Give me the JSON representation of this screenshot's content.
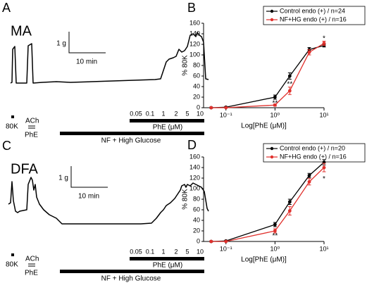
{
  "trace_panels": [
    {
      "letter": "A",
      "label": "MA",
      "scale_force": "1 g",
      "scale_time": "10 min",
      "stimuli": [
        "80K",
        "ACh",
        "PhE"
      ],
      "concentrations": [
        "0.05",
        "0.1",
        "1",
        "2",
        "5",
        "10"
      ],
      "phe_label": "PhE (μM)",
      "bar_label": "NF + High Glucose"
    },
    {
      "letter": "C",
      "label": "DFA",
      "scale_force": "1 g",
      "scale_time": "10 min",
      "stimuli": [
        "80K",
        "ACh",
        "PhE"
      ],
      "concentrations": [
        "0.05",
        "0.1",
        "1",
        "2",
        "5",
        "10"
      ],
      "phe_label": "PhE (μM)",
      "bar_label": "NF + High Glucose"
    }
  ],
  "chart_data": [
    {
      "type": "line",
      "panel": "B",
      "ylabel": "% 80K",
      "xlabel": "Log[PhE (μM)]",
      "log_x": true,
      "x": [
        0.05,
        0.1,
        1,
        2,
        5,
        10
      ],
      "xlim": [
        0.035,
        10
      ],
      "xticks": [
        {
          "value": 0.1,
          "label": "10⁻¹"
        },
        {
          "value": 1,
          "label": "10⁰"
        },
        {
          "value": 10,
          "label": "10¹"
        }
      ],
      "ylim": [
        0,
        160
      ],
      "yticks": [
        0,
        20,
        40,
        60,
        80,
        100,
        120,
        140,
        160
      ],
      "series": [
        {
          "name": "Control  endo (+) / n=24",
          "color": "#000000",
          "values": [
            0,
            1,
            20,
            60,
            110,
            118
          ],
          "errors": [
            1,
            1,
            4,
            6,
            4,
            3
          ]
        },
        {
          "name": "NF+HG endo (+) / n=16",
          "color": "#e0302c",
          "values": [
            0,
            0,
            5,
            32,
            105,
            122
          ],
          "errors": [
            0,
            0,
            2,
            7,
            5,
            4
          ]
        }
      ],
      "annotations": [
        {
          "text": "**",
          "x": 1,
          "y": 8
        },
        {
          "text": "**",
          "x": 2,
          "y": 44
        },
        {
          "text": "*",
          "x": 10,
          "y": 131
        }
      ]
    },
    {
      "type": "line",
      "panel": "D",
      "ylabel": "% 80K",
      "xlabel": "Log[PhE (μM)]",
      "log_x": true,
      "x": [
        0.05,
        0.1,
        1,
        2,
        5,
        10
      ],
      "xlim": [
        0.035,
        10
      ],
      "xticks": [
        {
          "value": 0.1,
          "label": "10⁻¹"
        },
        {
          "value": 1,
          "label": "10⁰"
        },
        {
          "value": 10,
          "label": "10¹"
        }
      ],
      "ylim": [
        0,
        160
      ],
      "yticks": [
        0,
        20,
        40,
        60,
        80,
        100,
        120,
        140,
        160
      ],
      "series": [
        {
          "name": "Control  endo (+) / n=20",
          "color": "#000000",
          "values": [
            0,
            1,
            32,
            75,
            125,
            150
          ],
          "errors": [
            1,
            1,
            4,
            5,
            4,
            5
          ]
        },
        {
          "name": "NF+HG endo (+) / n=16",
          "color": "#e0302c",
          "values": [
            0,
            0,
            20,
            58,
            113,
            140
          ],
          "errors": [
            0,
            0,
            4,
            8,
            6,
            8
          ]
        }
      ],
      "annotations": [
        {
          "text": "**",
          "x": 1,
          "y": 10
        },
        {
          "text": "*",
          "x": 10,
          "y": 118
        }
      ]
    }
  ]
}
